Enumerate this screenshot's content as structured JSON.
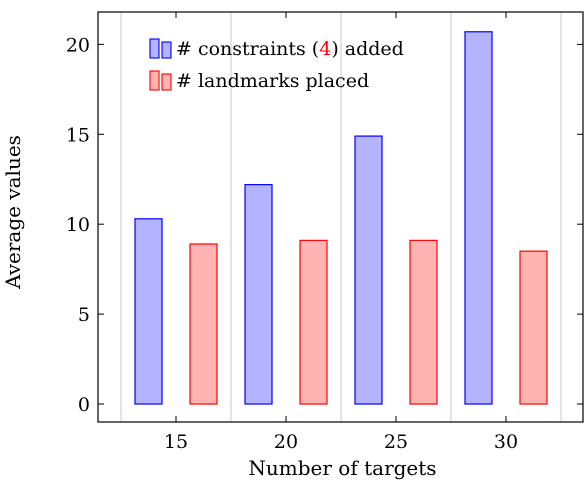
{
  "chart_data": {
    "type": "bar",
    "categories": [
      "15",
      "20",
      "25",
      "30"
    ],
    "series": [
      {
        "name": "# constraints (4) added",
        "name_parts": [
          "# constraints (",
          "4",
          ") added"
        ],
        "values": [
          10.3,
          12.2,
          14.9,
          20.7
        ],
        "fill": "#b3b3ff",
        "stroke": "#0000ff"
      },
      {
        "name": "# landmarks placed",
        "name_parts": [
          "# landmarks placed"
        ],
        "values": [
          8.9,
          9.1,
          9.1,
          8.5
        ],
        "fill": "#ffb3b3",
        "stroke": "#ff0000"
      }
    ],
    "xlabel": "Number of targets",
    "ylabel": "Average values",
    "ylim": [
      -1.0,
      21.8
    ],
    "yticks": [
      "0",
      "5",
      "10",
      "15",
      "20"
    ],
    "grid": "vertical",
    "legend_position": "top-left",
    "colors": {
      "highlight": "#ff0000",
      "grid": "#c8c8c8",
      "axis": "#000000"
    }
  }
}
